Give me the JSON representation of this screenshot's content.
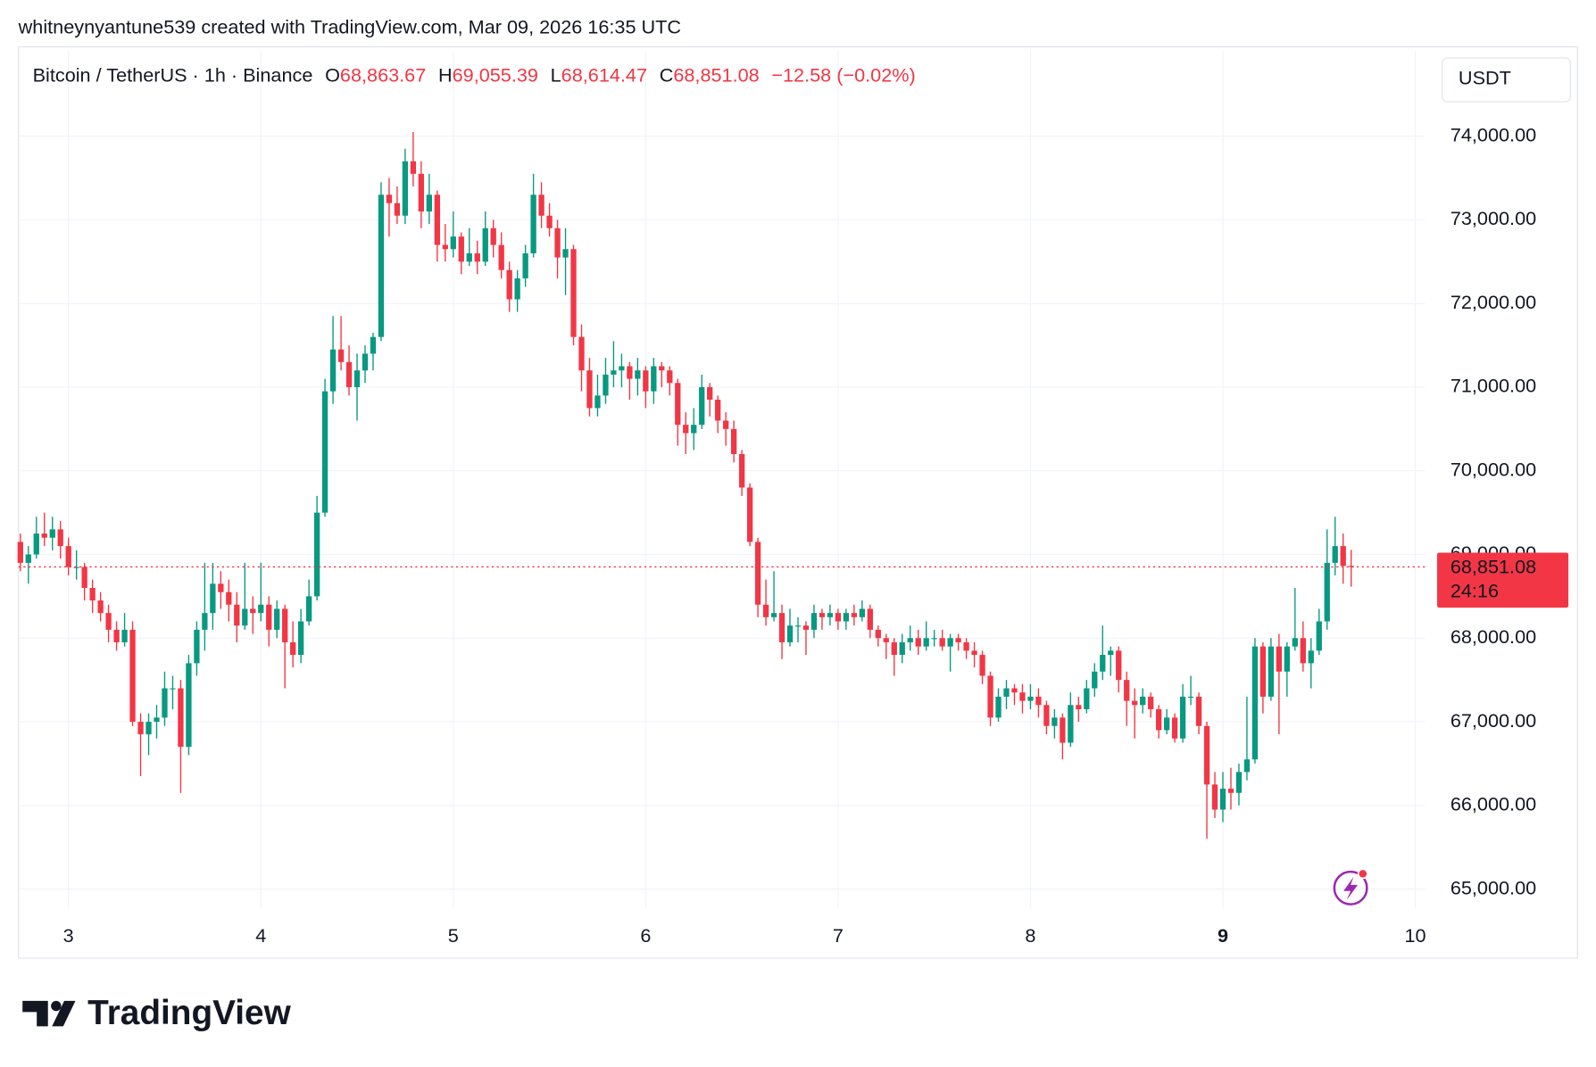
{
  "header": {
    "text": "whitneynyantune539 created with TradingView.com, Mar 09, 2026 16:35 UTC"
  },
  "chart_data": {
    "type": "candlestick",
    "legend": {
      "symbol": "Bitcoin / TetherUS · 1h · Binance",
      "ohlc": [
        {
          "label": "O",
          "value": "68,863.67"
        },
        {
          "label": "H",
          "value": "69,055.39"
        },
        {
          "label": "L",
          "value": "68,614.47"
        },
        {
          "label": "C",
          "value": "68,851.08"
        }
      ],
      "change": "−12.58 (−0.02%)"
    },
    "currency": "USDT",
    "last_price_label": "68,851.08",
    "countdown": "24:16",
    "up_color": "#089981",
    "down_color": "#f23645",
    "grid": true,
    "x": [
      2.75,
      2.7917,
      2.8333,
      2.875,
      2.9167,
      2.9583,
      3,
      3.0417,
      3.0833,
      3.125,
      3.1667,
      3.2083,
      3.25,
      3.2917,
      3.3333,
      3.375,
      3.4167,
      3.4583,
      3.5,
      3.5417,
      3.5833,
      3.625,
      3.6667,
      3.7083,
      3.75,
      3.7917,
      3.8333,
      3.875,
      3.9167,
      3.9583,
      4,
      4.0417,
      4.0833,
      4.125,
      4.1667,
      4.2083,
      4.25,
      4.2917,
      4.3333,
      4.375,
      4.4167,
      4.4583,
      4.5,
      4.5417,
      4.5833,
      4.625,
      4.6667,
      4.7083,
      4.75,
      4.7917,
      4.8333,
      4.875,
      4.9167,
      4.9583,
      5,
      5.0417,
      5.0833,
      5.125,
      5.1667,
      5.2083,
      5.25,
      5.2917,
      5.3333,
      5.375,
      5.4167,
      5.4583,
      5.5,
      5.5417,
      5.5833,
      5.625,
      5.6667,
      5.7083,
      5.75,
      5.7917,
      5.8333,
      5.875,
      5.9167,
      5.9583,
      6,
      6.0417,
      6.0833,
      6.125,
      6.1667,
      6.2083,
      6.25,
      6.2917,
      6.3333,
      6.375,
      6.4167,
      6.4583,
      6.5,
      6.5417,
      6.5833,
      6.625,
      6.6667,
      6.7083,
      6.75,
      6.7917,
      6.8333,
      6.875,
      6.9167,
      6.9583,
      7,
      7.0417,
      7.0833,
      7.125,
      7.1667,
      7.2083,
      7.25,
      7.2917,
      7.3333,
      7.375,
      7.4167,
      7.4583,
      7.5,
      7.5417,
      7.5833,
      7.625,
      7.6667,
      7.7083,
      7.75,
      7.7917,
      7.8333,
      7.875,
      7.9167,
      7.9583,
      8,
      8.0417,
      8.0833,
      8.125,
      8.1667,
      8.2083,
      8.25,
      8.2917,
      8.3333,
      8.375,
      8.4167,
      8.4583,
      8.5,
      8.5417,
      8.5833,
      8.625,
      8.6667,
      8.7083,
      8.75,
      8.7917,
      8.8333,
      8.875,
      8.9167,
      8.9583,
      9,
      9.0417,
      9.0833,
      9.125,
      9.1667,
      9.2083,
      9.25,
      9.2917,
      9.3333,
      9.375,
      9.4167,
      9.4583,
      9.5,
      9.5417,
      9.5833,
      9.625,
      9.6667
    ],
    "open": [
      69150,
      68900,
      69000,
      69250,
      69200,
      69300,
      69100,
      68850,
      68850,
      68600,
      68450,
      68300,
      68100,
      67950,
      68100,
      67000,
      66850,
      67000,
      67050,
      67400,
      67400,
      66700,
      67700,
      68100,
      68300,
      68650,
      68550,
      68400,
      68150,
      68350,
      68300,
      68400,
      68100,
      68350,
      67950,
      67800,
      68200,
      68500,
      69500,
      70950,
      71450,
      71300,
      71000,
      71200,
      71400,
      71600,
      73300,
      73200,
      73050,
      73700,
      73550,
      73100,
      73300,
      72700,
      72650,
      72800,
      72500,
      72600,
      72500,
      72900,
      72700,
      72400,
      72050,
      72300,
      72600,
      73300,
      73050,
      72900,
      72550,
      72650,
      71600,
      71200,
      70750,
      70900,
      71150,
      71200,
      71250,
      71100,
      71200,
      70950,
      71250,
      71200,
      71050,
      70550,
      70450,
      70550,
      71000,
      70850,
      70600,
      70500,
      70200,
      69800,
      69150,
      68400,
      68250,
      68300,
      67950,
      68150,
      68150,
      68100,
      68300,
      68250,
      68300,
      68200,
      68300,
      68250,
      68350,
      68100,
      68000,
      67950,
      67800,
      67950,
      68000,
      67900,
      68000,
      68000,
      67900,
      68000,
      67950,
      67850,
      67800,
      67550,
      67050,
      67300,
      67400,
      67350,
      67250,
      67300,
      67200,
      66950,
      67050,
      66750,
      67200,
      67150,
      67400,
      67600,
      67800,
      67850,
      67500,
      67250,
      67200,
      67300,
      67150,
      66900,
      67050,
      66800,
      67300,
      67300,
      66950,
      66250,
      65950,
      66200,
      66150,
      66400,
      66550,
      67900,
      67300,
      67900,
      67600,
      67900,
      68000,
      67700,
      67850,
      68200,
      68900,
      69100,
      68863.67
    ],
    "high": [
      69250,
      69100,
      69450,
      69500,
      69450,
      69400,
      69200,
      69050,
      68900,
      68700,
      68550,
      68400,
      68200,
      68300,
      68200,
      67100,
      67100,
      67200,
      67600,
      67550,
      67500,
      67800,
      68200,
      68900,
      68900,
      68800,
      68700,
      68550,
      68900,
      68500,
      68900,
      68500,
      68450,
      68400,
      68200,
      68350,
      68700,
      69700,
      71100,
      71850,
      71850,
      71500,
      71400,
      71500,
      71650,
      73450,
      73500,
      73400,
      73850,
      74050,
      73700,
      73550,
      73350,
      72950,
      73100,
      72850,
      72900,
      72750,
      73100,
      73000,
      72850,
      72500,
      72400,
      72700,
      73550,
      73450,
      73200,
      73000,
      72900,
      72700,
      71750,
      71350,
      71150,
      71350,
      71550,
      71400,
      71300,
      71350,
      71250,
      71350,
      71300,
      71250,
      71100,
      70700,
      70750,
      71150,
      71050,
      70900,
      70700,
      70600,
      70250,
      69850,
      69200,
      68700,
      68800,
      68400,
      68350,
      68250,
      68200,
      68400,
      68350,
      68400,
      68350,
      68350,
      68400,
      68450,
      68400,
      68150,
      68050,
      68000,
      68050,
      68150,
      68100,
      68200,
      68100,
      68100,
      68050,
      68050,
      68000,
      67950,
      67850,
      67600,
      67400,
      67500,
      67450,
      67450,
      67450,
      67400,
      67250,
      67150,
      67100,
      67350,
      67300,
      67500,
      67700,
      68150,
      67900,
      67900,
      67600,
      67400,
      67400,
      67350,
      67200,
      67150,
      67100,
      67450,
      67550,
      67350,
      67000,
      66400,
      66400,
      66450,
      66500,
      67300,
      68000,
      67950,
      68000,
      68050,
      67950,
      68600,
      68200,
      68000,
      68350,
      69300,
      69450,
      69250,
      69055.39
    ],
    "low": [
      68800,
      68650,
      68950,
      69100,
      69050,
      68950,
      68750,
      68700,
      68450,
      68300,
      68200,
      67950,
      67850,
      67900,
      66950,
      66350,
      66600,
      66800,
      66950,
      67150,
      66150,
      66600,
      67550,
      67850,
      68100,
      68350,
      68200,
      67950,
      68100,
      68050,
      68200,
      67900,
      68000,
      67400,
      67650,
      67700,
      68150,
      68450,
      69450,
      70800,
      71200,
      70900,
      70600,
      71050,
      71200,
      71550,
      72800,
      72950,
      72950,
      73400,
      72900,
      72950,
      72500,
      72500,
      72550,
      72350,
      72450,
      72350,
      72450,
      72550,
      72300,
      71900,
      71900,
      72200,
      72550,
      72900,
      72800,
      72300,
      72100,
      71500,
      70950,
      70650,
      70650,
      70800,
      71000,
      71000,
      70850,
      70900,
      70750,
      70800,
      71000,
      70900,
      70300,
      70200,
      70250,
      70500,
      70650,
      70450,
      70300,
      70100,
      69700,
      69100,
      68250,
      68150,
      68200,
      67750,
      67900,
      67950,
      67800,
      68000,
      68100,
      68150,
      68100,
      68100,
      68150,
      68200,
      68000,
      67900,
      67750,
      67550,
      67700,
      67850,
      67800,
      67850,
      67900,
      67850,
      67600,
      67850,
      67750,
      67650,
      67450,
      66950,
      67000,
      67150,
      67200,
      67100,
      67150,
      67050,
      66850,
      66800,
      66550,
      66700,
      67000,
      67100,
      67300,
      67500,
      67550,
      67350,
      66950,
      66800,
      67100,
      67050,
      66800,
      66850,
      66750,
      66750,
      67200,
      66850,
      65600,
      65850,
      65800,
      65950,
      66000,
      66300,
      66500,
      67100,
      67250,
      66850,
      67300,
      67850,
      67600,
      67400,
      67800,
      68100,
      68750,
      68650,
      68614.47
    ],
    "close": [
      68900,
      69000,
      69250,
      69200,
      69300,
      69100,
      68850,
      68850,
      68600,
      68450,
      68300,
      68100,
      67950,
      68100,
      67000,
      66850,
      67000,
      67050,
      67400,
      67400,
      66700,
      67700,
      68100,
      68300,
      68650,
      68550,
      68400,
      68150,
      68350,
      68300,
      68400,
      68100,
      68350,
      67950,
      67800,
      68200,
      68500,
      69500,
      70950,
      71450,
      71300,
      71000,
      71200,
      71400,
      71600,
      73300,
      73200,
      73050,
      73700,
      73550,
      73100,
      73300,
      72700,
      72650,
      72800,
      72500,
      72600,
      72500,
      72900,
      72700,
      72400,
      72050,
      72300,
      72600,
      73300,
      73050,
      72900,
      72550,
      72650,
      71600,
      71200,
      70750,
      70900,
      71150,
      71200,
      71250,
      71100,
      71200,
      70950,
      71250,
      71200,
      71050,
      70550,
      70450,
      70550,
      71000,
      70850,
      70600,
      70500,
      70200,
      69800,
      69150,
      68400,
      68250,
      68300,
      67950,
      68150,
      68150,
      68100,
      68300,
      68250,
      68300,
      68200,
      68300,
      68250,
      68350,
      68100,
      68000,
      67950,
      67800,
      67950,
      68000,
      67900,
      68000,
      68000,
      67900,
      68000,
      67950,
      67850,
      67800,
      67550,
      67050,
      67300,
      67400,
      67350,
      67250,
      67300,
      67200,
      66950,
      67050,
      66750,
      67200,
      67150,
      67400,
      67600,
      67800,
      67850,
      67500,
      67250,
      67200,
      67300,
      67150,
      66900,
      67050,
      66800,
      67300,
      67300,
      66950,
      66250,
      65950,
      66200,
      66150,
      66400,
      66550,
      67900,
      67300,
      67900,
      67600,
      67900,
      68000,
      67700,
      67850,
      68200,
      68900,
      69100,
      68863.67,
      68851.08
    ],
    "xlim": [
      2.74,
      10.05
    ],
    "xticks": [
      3,
      4,
      5,
      6,
      7,
      8,
      9,
      10
    ],
    "ylim": [
      64770,
      75020
    ],
    "yticks": [
      {
        "value": 65000,
        "label": "65,000.00"
      },
      {
        "value": 66000,
        "label": "66,000.00"
      },
      {
        "value": 67000,
        "label": "67,000.00"
      },
      {
        "value": 68000,
        "label": "68,000.00"
      },
      {
        "value": 69000,
        "label": "69,000.00"
      },
      {
        "value": 70000,
        "label": "70,000.00"
      },
      {
        "value": 71000,
        "label": "71,000.00"
      },
      {
        "value": 72000,
        "label": "72,000.00"
      },
      {
        "value": 73000,
        "label": "73,000.00"
      },
      {
        "value": 74000,
        "label": "74,000.00"
      }
    ]
  },
  "footer": {
    "logo": "TradingView"
  }
}
